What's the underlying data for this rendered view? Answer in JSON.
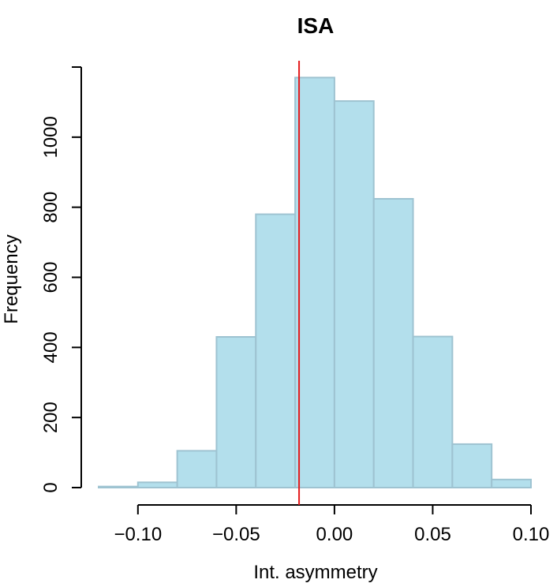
{
  "chart_data": {
    "type": "bar",
    "title": "ISA",
    "xlabel": "Int. asymmetry",
    "ylabel": "Frequency",
    "bins": [
      {
        "start": -0.12,
        "end": -0.1,
        "count": 3
      },
      {
        "start": -0.1,
        "end": -0.08,
        "count": 15
      },
      {
        "start": -0.08,
        "end": -0.06,
        "count": 105
      },
      {
        "start": -0.06,
        "end": -0.04,
        "count": 430
      },
      {
        "start": -0.04,
        "end": -0.02,
        "count": 780
      },
      {
        "start": -0.02,
        "end": 0.0,
        "count": 1170
      },
      {
        "start": 0.0,
        "end": 0.02,
        "count": 1103
      },
      {
        "start": 0.02,
        "end": 0.04,
        "count": 824
      },
      {
        "start": 0.04,
        "end": 0.06,
        "count": 431
      },
      {
        "start": 0.06,
        "end": 0.08,
        "count": 124
      },
      {
        "start": 0.08,
        "end": 0.1,
        "count": 23
      }
    ],
    "xticks": [
      {
        "value": -0.1,
        "label": "−0.10"
      },
      {
        "value": -0.05,
        "label": "−0.05"
      },
      {
        "value": 0.0,
        "label": "0.00"
      },
      {
        "value": 0.05,
        "label": "0.05"
      },
      {
        "value": 0.1,
        "label": "0.10"
      }
    ],
    "yticks": [
      {
        "value": 0,
        "label": "0"
      },
      {
        "value": 200,
        "label": "200"
      },
      {
        "value": 400,
        "label": "400"
      },
      {
        "value": 600,
        "label": "600"
      },
      {
        "value": 800,
        "label": "800"
      },
      {
        "value": 1000,
        "label": "1000"
      }
    ],
    "xlim": [
      -0.12,
      0.1
    ],
    "ylim": [
      0,
      1200
    ],
    "vline": {
      "x": -0.018,
      "color": "#e41a1c"
    },
    "bar_fill": "#b3dfec",
    "bar_stroke": "#9ec3d1",
    "grid": false,
    "legend": "none"
  }
}
